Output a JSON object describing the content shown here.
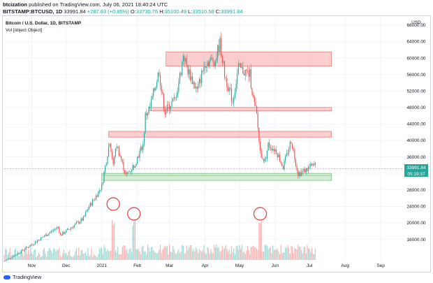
{
  "header": {
    "author": "btcization",
    "published": "published on TradingView.com, July 06, 2021 18:40:24 UTC",
    "symbol": "BITSTAMP:BTCUSD, 1D",
    "last": "33991.84",
    "change": "+287.63 (+0.85%)",
    "open_label": "O:",
    "open": "33730.76",
    "high_label": "H:",
    "high": "35100.49",
    "low_label": "L:",
    "low": "33510.58",
    "close_label": "C:",
    "close": "33991.84"
  },
  "legend": {
    "title": "Bitcoin / U.S. Dollar, 1D, BITSTAMP",
    "vol": "Vol [object Object]"
  },
  "footer": {
    "brand": "TradingView"
  },
  "colors": {
    "up": "#26a69a",
    "down": "#ef5350",
    "resistance_zone": "#f8bdbd",
    "support_zone": "#c8e6c9",
    "circle": "#e53935"
  },
  "chart_data": {
    "type": "candlestick",
    "currency_label": "USD",
    "y_axis": {
      "ticks": [
        16000,
        20000,
        24000,
        28000,
        32000,
        36000,
        40000,
        44000,
        48000,
        52000,
        56000,
        60000,
        64000,
        68000
      ],
      "tick_labels": [
        "16000.00",
        "20000.00",
        "24000.00",
        "28000.00",
        "32000.00",
        "36000.00",
        "40000.00",
        "44000.00",
        "48000.00",
        "52000.00",
        "56000.00",
        "60000.00",
        "64000.00",
        "68000.00"
      ],
      "range": [
        11000,
        70000
      ]
    },
    "x_axis": {
      "tick_labels": [
        "Nov",
        "Dec",
        "2021",
        "Feb",
        "Mar",
        "Apr",
        "May",
        "Jun",
        "Jul",
        "Aug",
        "Sep"
      ],
      "tick_dates": [
        "2020-11-01",
        "2020-12-01",
        "2021-01-01",
        "2021-02-01",
        "2021-03-01",
        "2021-04-01",
        "2021-05-01",
        "2021-06-01",
        "2021-07-01",
        "2021-08-01",
        "2021-09-01"
      ],
      "range": [
        "2020-10-08",
        "2021-09-21"
      ]
    },
    "last_price": {
      "value": 33991.84,
      "label": "33991.84",
      "countdown": "05:19:37"
    },
    "support_price": 31500,
    "price_path": [
      [
        "2020-10-08",
        10700
      ],
      [
        "2020-10-21",
        12800
      ],
      [
        "2020-11-05",
        15500
      ],
      [
        "2020-11-24",
        19000
      ],
      [
        "2020-11-26",
        17000
      ],
      [
        "2020-12-16",
        21000
      ],
      [
        "2020-12-20",
        23500
      ],
      [
        "2020-12-27",
        26500
      ],
      [
        "2021-01-01",
        29000
      ],
      [
        "2021-01-08",
        40000
      ],
      [
        "2021-01-11",
        34000
      ],
      [
        "2021-01-14",
        39000
      ],
      [
        "2021-01-22",
        31500
      ],
      [
        "2021-01-29",
        34000
      ],
      [
        "2021-02-06",
        39000
      ],
      [
        "2021-02-08",
        46000
      ],
      [
        "2021-02-12",
        48000
      ],
      [
        "2021-02-20",
        57000
      ],
      [
        "2021-02-22",
        52000
      ],
      [
        "2021-02-25",
        47000
      ],
      [
        "2021-03-01",
        48500
      ],
      [
        "2021-03-06",
        50000
      ],
      [
        "2021-03-11",
        57000
      ],
      [
        "2021-03-13",
        61000
      ],
      [
        "2021-03-17",
        57000
      ],
      [
        "2021-03-25",
        52000
      ],
      [
        "2021-04-01",
        59000
      ],
      [
        "2021-04-10",
        59500
      ],
      [
        "2021-04-13",
        63000
      ],
      [
        "2021-04-14",
        63500
      ],
      [
        "2021-04-18",
        56000
      ],
      [
        "2021-04-25",
        49500
      ],
      [
        "2021-04-30",
        57500
      ],
      [
        "2021-05-10",
        56000
      ],
      [
        "2021-05-13",
        50000
      ],
      [
        "2021-05-16",
        46000
      ],
      [
        "2021-05-19",
        37000
      ],
      [
        "2021-05-23",
        35000
      ],
      [
        "2021-05-26",
        39000
      ],
      [
        "2021-06-02",
        37500
      ],
      [
        "2021-06-08",
        33500
      ],
      [
        "2021-06-15",
        40000
      ],
      [
        "2021-06-21",
        32000
      ],
      [
        "2021-06-26",
        32500
      ],
      [
        "2021-07-01",
        33500
      ],
      [
        "2021-07-06",
        33991
      ]
    ],
    "zones": [
      {
        "kind": "resistance",
        "from": "2021-02-26",
        "to": "2021-07-20",
        "low": 58000,
        "high": 61500
      },
      {
        "kind": "resistance",
        "from": "2021-02-11",
        "to": "2021-07-20",
        "low": 47200,
        "high": 48000
      },
      {
        "kind": "resistance",
        "from": "2021-01-07",
        "to": "2021-07-20",
        "low": 40800,
        "high": 42200
      },
      {
        "kind": "support",
        "from": "2021-01-01",
        "to": "2021-07-20",
        "low": 30300,
        "high": 32000
      }
    ],
    "volume_highlights": [
      "2021-01-11",
      "2021-01-29",
      "2021-05-19"
    ]
  }
}
